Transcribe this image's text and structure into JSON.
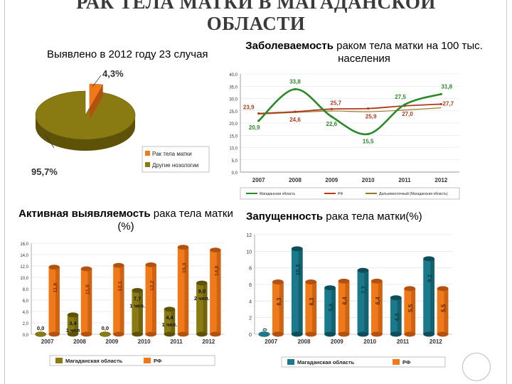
{
  "title": {
    "line1": "РАК ТЕЛА МАТКИ В МАГАДАНСКОЙ",
    "line2": "ОБЛАСТИ"
  },
  "captions": {
    "pie": "Выявлено в 2012 году 23 случая",
    "line_bold": "Заболеваемость",
    "line_rest": " раком тела матки на 100 тыс. населения",
    "bar1_bold": "Активная выявляемость",
    "bar1_rest": " рака тела матки (%)",
    "bar2_bold": "Запущенность",
    "bar2_rest": " рака тела матки(%)"
  },
  "colors": {
    "orange": "#f07a1a",
    "olive": "#8a7a12",
    "teal": "#1a7a8c",
    "green": "#2a8a2a",
    "red": "#b03a1e"
  },
  "chart_data": [
    {
      "type": "pie",
      "slices": [
        {
          "name": "Рак тела матки",
          "value": 4.3,
          "label": "4,3%"
        },
        {
          "name": "Другие нозологии",
          "value": 95.7,
          "label": "95,7%"
        }
      ],
      "legend": "right"
    },
    {
      "type": "line",
      "x": [
        "2007",
        "2008",
        "2009",
        "2010",
        "2011",
        "2012"
      ],
      "ylim": [
        0,
        40
      ],
      "yticks": [
        "0,0",
        "5,0",
        "10,0",
        "15,0",
        "20,0",
        "25,0",
        "30,0",
        "35,0",
        "40,0"
      ],
      "series": [
        {
          "name": "Магаданская область",
          "values": [
            20.9,
            33.8,
            22.6,
            15.5,
            27.5,
            31.8
          ],
          "labels": [
            "20,9",
            "33,8",
            "22,6",
            "15,5",
            "27,5",
            "31,8"
          ]
        },
        {
          "name": "РФ",
          "values": [
            23.9,
            24.6,
            25.7,
            25.9,
            27.0,
            27.7
          ],
          "labels": [
            "23,9",
            "24,6",
            "25,7",
            "25,9",
            "27,0",
            "27,7"
          ]
        },
        {
          "name": "Дальневосточный (Магаданская область)",
          "values": [
            23.6,
            24.3,
            24.9,
            24.6,
            25.3,
            26.2
          ],
          "labels": []
        }
      ],
      "legend": "bottom"
    },
    {
      "type": "bar",
      "categories": [
        "2007",
        "2008",
        "2009",
        "2010",
        "2011",
        "2012"
      ],
      "ylim": [
        0,
        16
      ],
      "yticks": [
        "0,0",
        "2,0",
        "4,0",
        "6,0",
        "8,0",
        "10,0",
        "12,0",
        "14,0",
        "16,0"
      ],
      "series": [
        {
          "name": "Магаданская область",
          "values": [
            0.0,
            3.4,
            0.0,
            7.7,
            4.4,
            9.0
          ],
          "labels": [
            "0,0",
            "3,4\n1 чел",
            "0,0",
            "7,7\n1 чел.",
            "4,4\n1 чел.",
            "9,0\n2 чел."
          ]
        },
        {
          "name": "РФ",
          "values": [
            11.8,
            11.5,
            12.1,
            12.2,
            15.3,
            14.8
          ],
          "labels": [
            "11,8",
            "11,5",
            "12,1",
            "12,2",
            "15,3",
            "14,8"
          ]
        }
      ],
      "legend": "bottom"
    },
    {
      "type": "bar",
      "categories": [
        "2007",
        "2008",
        "2009",
        "2010",
        "2011",
        "2012"
      ],
      "ylim": [
        0,
        12
      ],
      "yticks": [
        "0",
        "2",
        "4",
        "6",
        "8",
        "10",
        "12"
      ],
      "series": [
        {
          "name": "Магаданская область",
          "values": [
            0,
            10.3,
            5.6,
            7.7,
            4.4,
            9.1
          ],
          "labels": [
            "0",
            "10,3",
            "5,6",
            "7,7",
            "4,4",
            "9,1"
          ]
        },
        {
          "name": "РФ",
          "values": [
            6.3,
            6.3,
            6.4,
            6.4,
            5.5,
            5.5
          ],
          "labels": [
            "6,3",
            "6,3",
            "6,4",
            "6,4",
            "5,5",
            "5,5"
          ]
        }
      ],
      "legend": "bottom"
    }
  ]
}
